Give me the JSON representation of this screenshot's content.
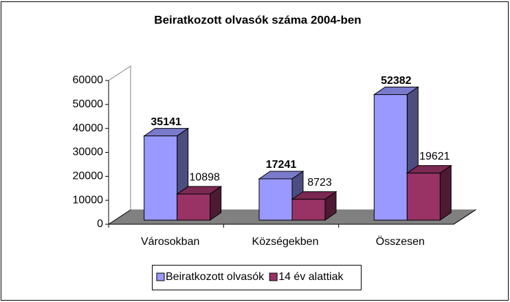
{
  "chart_data": {
    "type": "bar3d",
    "title": "Beiratkozott olvasók száma 2004-ben",
    "categories": [
      "Városokban",
      "Községekben",
      "Összesen"
    ],
    "series": [
      {
        "name": "Beiratkozott olvasók",
        "color": "#9999ff",
        "values": [
          35141,
          17241,
          52382
        ]
      },
      {
        "name": "14 év alattiak",
        "color": "#993366",
        "values": [
          10898,
          8723,
          19621
        ]
      }
    ],
    "ylim": [
      0,
      60000
    ],
    "yticks": [
      0,
      10000,
      20000,
      30000,
      40000,
      50000,
      60000
    ],
    "legend": "bottom"
  }
}
